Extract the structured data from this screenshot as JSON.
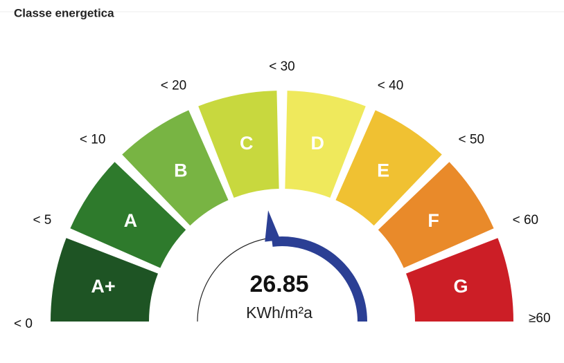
{
  "chart_data": {
    "type": "gauge",
    "title": "Classe energetica",
    "segments": [
      {
        "label": "A+",
        "color": "#1e5424"
      },
      {
        "label": "A",
        "color": "#2e7a2c"
      },
      {
        "label": "B",
        "color": "#78b443"
      },
      {
        "label": "C",
        "color": "#c8d83e"
      },
      {
        "label": "D",
        "color": "#efe95c"
      },
      {
        "label": "E",
        "color": "#f0c132"
      },
      {
        "label": "F",
        "color": "#e98a2a"
      },
      {
        "label": "G",
        "color": "#cc1e26"
      }
    ],
    "ticks": [
      {
        "value": 0,
        "label": "< 0"
      },
      {
        "value": 5,
        "label": "< 5"
      },
      {
        "value": 10,
        "label": "< 10"
      },
      {
        "value": 20,
        "label": "< 20"
      },
      {
        "value": 30,
        "label": "< 30"
      },
      {
        "value": 40,
        "label": "< 40"
      },
      {
        "value": 50,
        "label": "< 50"
      },
      {
        "value": 60,
        "label": "< 60"
      }
    ],
    "max_label": "≥60",
    "value": 26.85,
    "unit": "KWh/m²a",
    "needle_color": "#2b3f94"
  }
}
